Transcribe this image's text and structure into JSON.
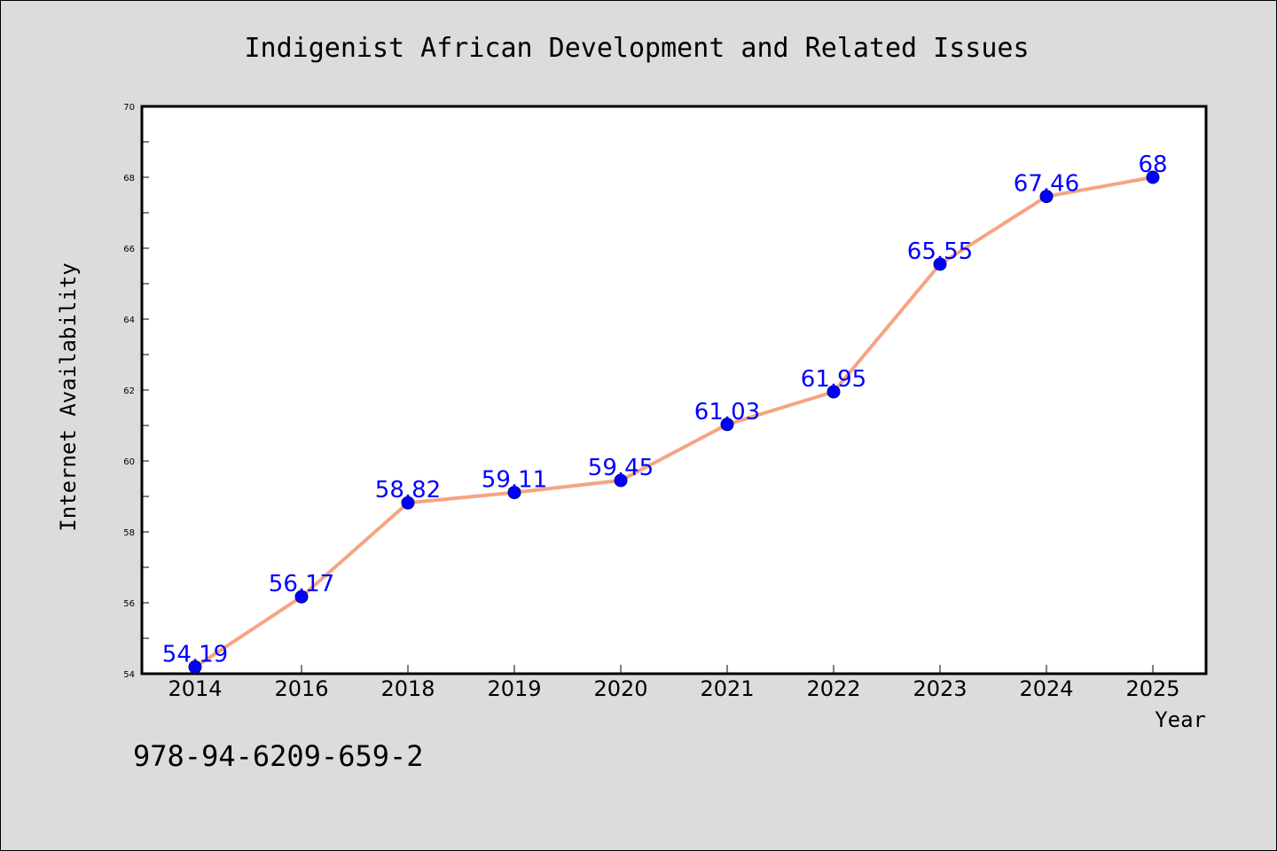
{
  "chart_data": {
    "type": "line",
    "title": "Indigenist African Development and Related Issues",
    "xlabel": "Year",
    "ylabel": "Internet Availability",
    "categories": [
      "2014",
      "2016",
      "2018",
      "2019",
      "2020",
      "2021",
      "2022",
      "2023",
      "2024",
      "2025"
    ],
    "series": [
      {
        "values": [
          54.19,
          56.17,
          58.82,
          59.11,
          59.45,
          61.03,
          61.95,
          65.55,
          67.46,
          68
        ],
        "labels": [
          "54.19",
          "56.17",
          "58.82",
          "59.11",
          "59.45",
          "61.03",
          "61.95",
          "65.55",
          "67.46",
          "68"
        ]
      }
    ],
    "ylim": [
      54,
      70
    ],
    "yticks": [
      54,
      56,
      58,
      60,
      62,
      64,
      66,
      68,
      70
    ],
    "ytick_labels": [
      "54",
      "56",
      "58",
      "60",
      "62",
      "64",
      "66",
      "68",
      "70"
    ],
    "grid": false,
    "colors": {
      "line": "#f4a582",
      "marker": "#0000ff",
      "label": "#0000ff",
      "plot_background": "#ffffff",
      "figure_background": "#dcdcdc"
    }
  },
  "footer_text": "978-94-6209-659-2"
}
